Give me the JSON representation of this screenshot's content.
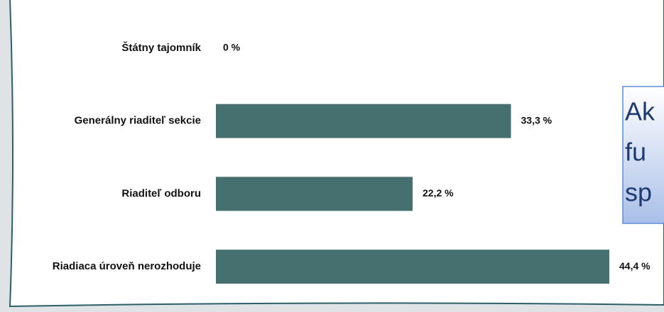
{
  "chart_data": {
    "type": "bar",
    "orientation": "horizontal",
    "categories": [
      "Štátny tajomník",
      "Generálny riaditeľ sekcie",
      "Riaditeľ odboru",
      "Riadiaca úroveň nerozhoduje"
    ],
    "values": [
      0,
      33.3,
      22.2,
      44.4
    ],
    "value_labels": [
      "0 %",
      "33,3 %",
      "22,2 %",
      "44,4 %"
    ],
    "color": "#466f6f"
  },
  "annotation_lines": [
    "Ak",
    "fu",
    "sp"
  ]
}
